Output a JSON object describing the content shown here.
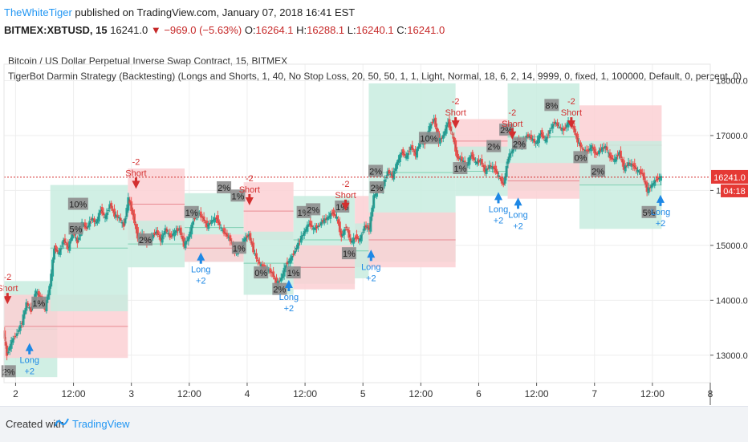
{
  "header": {
    "author": "TheWhiteTiger",
    "published_text": "published on TradingView.com, January 07, 2018 16:41 EST",
    "symbol": "BITMEX:XBTUSD, 15",
    "last": "16241.0",
    "change": "−969.0 (−5.63%)",
    "open_label": "O:",
    "open": "16264.1",
    "high_label": "H:",
    "high": "16288.1",
    "low_label": "L:",
    "low": "16240.1",
    "close_label": "C:",
    "close": "16241.0"
  },
  "footer": {
    "created_with": "Created with",
    "brand": "TradingView"
  },
  "colors": {
    "up": "#26a69a",
    "down": "#ef5350",
    "long_zone": "#c8ecdf",
    "short_zone": "#fbd0d4",
    "short_marker": "#d32f2f",
    "long_marker": "#1e88e5",
    "price_line": "#d32f2f",
    "label_bg": "#8d8d8d"
  },
  "chart_data": {
    "type": "candlestick",
    "title": "Bitcoin / US Dollar Perpetual Inverse Swap Contract, 15, BITMEX",
    "subtitle": "TigerBot Darmin Strategy (Backtesting) (Longs and Shorts, 1, 40, No Stop Loss, 20, 50, 50, 1, 1, Light, Normal, 18, 6, 2, 14, 9999, 0, fixed, 1, 100000, Default, 0, percent, 0)",
    "x_ticks": [
      "2",
      "12:00",
      "3",
      "12:00",
      "4",
      "12:00",
      "5",
      "12:00",
      "6",
      "12:00",
      "7",
      "12:00",
      "8"
    ],
    "x_tick_positions": [
      0.2,
      0.7,
      1.2,
      1.7,
      2.2,
      2.7,
      3.2,
      3.7,
      4.2,
      4.7,
      5.2,
      5.7,
      6.2
    ],
    "x_range": [
      0.1,
      6.2
    ],
    "y_ticks": [
      "13000.0",
      "14000.0",
      "15000.0",
      "16000.0",
      "17000.0",
      "18000.0"
    ],
    "y_tick_values": [
      13000,
      14000,
      15000,
      16000,
      17000,
      18000
    ],
    "y_range": [
      12500,
      18300
    ],
    "last_price": 16241.0,
    "last_price_label": "16241.0",
    "countdown": "04:18",
    "price_path": [
      [
        0.1,
        13450
      ],
      [
        0.13,
        13000
      ],
      [
        0.17,
        13250
      ],
      [
        0.22,
        13400
      ],
      [
        0.26,
        13600
      ],
      [
        0.3,
        13950
      ],
      [
        0.34,
        13800
      ],
      [
        0.38,
        14150
      ],
      [
        0.42,
        14050
      ],
      [
        0.46,
        13850
      ],
      [
        0.5,
        14250
      ],
      [
        0.54,
        14950
      ],
      [
        0.58,
        14850
      ],
      [
        0.62,
        15100
      ],
      [
        0.66,
        14950
      ],
      [
        0.7,
        15250
      ],
      [
        0.74,
        15050
      ],
      [
        0.78,
        15400
      ],
      [
        0.82,
        15300
      ],
      [
        0.86,
        15500
      ],
      [
        0.9,
        15400
      ],
      [
        0.94,
        15650
      ],
      [
        0.98,
        15500
      ],
      [
        1.02,
        15750
      ],
      [
        1.06,
        15550
      ],
      [
        1.1,
        15500
      ],
      [
        1.14,
        15350
      ],
      [
        1.18,
        15850
      ],
      [
        1.22,
        15550
      ],
      [
        1.26,
        15150
      ],
      [
        1.3,
        15200
      ],
      [
        1.34,
        15050
      ],
      [
        1.38,
        15150
      ],
      [
        1.42,
        15250
      ],
      [
        1.46,
        15100
      ],
      [
        1.5,
        15300
      ],
      [
        1.54,
        15150
      ],
      [
        1.58,
        15250
      ],
      [
        1.62,
        15300
      ],
      [
        1.66,
        15000
      ],
      [
        1.7,
        15150
      ],
      [
        1.74,
        15450
      ],
      [
        1.78,
        15600
      ],
      [
        1.82,
        15500
      ],
      [
        1.86,
        15350
      ],
      [
        1.9,
        15450
      ],
      [
        1.94,
        15500
      ],
      [
        1.98,
        15300
      ],
      [
        2.02,
        15200
      ],
      [
        2.06,
        15100
      ],
      [
        2.1,
        14850
      ],
      [
        2.14,
        14950
      ],
      [
        2.18,
        15100
      ],
      [
        2.22,
        15200
      ],
      [
        2.26,
        14900
      ],
      [
        2.3,
        14700
      ],
      [
        2.34,
        14600
      ],
      [
        2.38,
        14550
      ],
      [
        2.42,
        14500
      ],
      [
        2.46,
        14300
      ],
      [
        2.5,
        14400
      ],
      [
        2.54,
        14650
      ],
      [
        2.58,
        14750
      ],
      [
        2.62,
        14900
      ],
      [
        2.66,
        15100
      ],
      [
        2.7,
        15250
      ],
      [
        2.74,
        15400
      ],
      [
        2.78,
        15300
      ],
      [
        2.82,
        15350
      ],
      [
        2.86,
        15450
      ],
      [
        2.9,
        15500
      ],
      [
        2.94,
        15600
      ],
      [
        2.98,
        15500
      ],
      [
        3.02,
        15150
      ],
      [
        3.06,
        15350
      ],
      [
        3.1,
        15050
      ],
      [
        3.14,
        15150
      ],
      [
        3.18,
        15100
      ],
      [
        3.22,
        15350
      ],
      [
        3.26,
        15300
      ],
      [
        3.3,
        15900
      ],
      [
        3.34,
        16000
      ],
      [
        3.38,
        16100
      ],
      [
        3.42,
        16350
      ],
      [
        3.46,
        16250
      ],
      [
        3.5,
        16500
      ],
      [
        3.54,
        16700
      ],
      [
        3.58,
        16600
      ],
      [
        3.62,
        16800
      ],
      [
        3.66,
        16650
      ],
      [
        3.7,
        16900
      ],
      [
        3.74,
        16850
      ],
      [
        3.78,
        17150
      ],
      [
        3.82,
        17300
      ],
      [
        3.86,
        16900
      ],
      [
        3.9,
        17000
      ],
      [
        3.94,
        17250
      ],
      [
        3.98,
        17000
      ],
      [
        4.02,
        16600
      ],
      [
        4.06,
        16550
      ],
      [
        4.1,
        16450
      ],
      [
        4.14,
        16650
      ],
      [
        4.18,
        16500
      ],
      [
        4.22,
        16550
      ],
      [
        4.26,
        16350
      ],
      [
        4.3,
        16450
      ],
      [
        4.34,
        16400
      ],
      [
        4.38,
        16250
      ],
      [
        4.42,
        16100
      ],
      [
        4.46,
        16600
      ],
      [
        4.5,
        16750
      ],
      [
        4.54,
        16900
      ],
      [
        4.58,
        16850
      ],
      [
        4.62,
        17000
      ],
      [
        4.66,
        16950
      ],
      [
        4.7,
        16850
      ],
      [
        4.74,
        17050
      ],
      [
        4.78,
        16900
      ],
      [
        4.82,
        17100
      ],
      [
        4.86,
        17250
      ],
      [
        4.9,
        17150
      ],
      [
        4.94,
        17100
      ],
      [
        4.98,
        17250
      ],
      [
        5.02,
        17150
      ],
      [
        5.06,
        16900
      ],
      [
        5.1,
        16750
      ],
      [
        5.14,
        16700
      ],
      [
        5.18,
        16800
      ],
      [
        5.22,
        16650
      ],
      [
        5.26,
        16750
      ],
      [
        5.3,
        16800
      ],
      [
        5.34,
        16600
      ],
      [
        5.38,
        16550
      ],
      [
        5.42,
        16700
      ],
      [
        5.46,
        16400
      ],
      [
        5.5,
        16500
      ],
      [
        5.54,
        16450
      ],
      [
        5.58,
        16350
      ],
      [
        5.62,
        16300
      ],
      [
        5.66,
        16000
      ],
      [
        5.7,
        16100
      ],
      [
        5.74,
        16200
      ],
      [
        5.78,
        16241
      ]
    ],
    "zones": [
      {
        "type": "long",
        "x0": 0.1,
        "x1": 0.56,
        "y0": 12600,
        "y1": 14350
      },
      {
        "type": "short",
        "x0": 0.1,
        "x1": 1.17,
        "y0": 12950,
        "y1": 14100
      },
      {
        "type": "long",
        "x0": 0.5,
        "x1": 1.17,
        "y0": 13800,
        "y1": 16100
      },
      {
        "type": "short",
        "x0": 1.17,
        "x1": 1.66,
        "y0": 15100,
        "y1": 16400
      },
      {
        "type": "long",
        "x0": 1.17,
        "x1": 1.66,
        "y0": 14600,
        "y1": 15450
      },
      {
        "type": "long",
        "x0": 1.66,
        "x1": 2.17,
        "y0": 14700,
        "y1": 15950
      },
      {
        "type": "short",
        "x0": 1.66,
        "x1": 2.17,
        "y0": 14700,
        "y1": 15200
      },
      {
        "type": "short",
        "x0": 2.17,
        "x1": 2.6,
        "y0": 15100,
        "y1": 16150
      },
      {
        "type": "long",
        "x0": 2.17,
        "x1": 2.6,
        "y0": 14100,
        "y1": 15250
      },
      {
        "type": "long",
        "x0": 2.6,
        "x1": 3.13,
        "y0": 14300,
        "y1": 15900
      },
      {
        "type": "short",
        "x0": 2.6,
        "x1": 3.13,
        "y0": 14200,
        "y1": 15000
      },
      {
        "type": "short",
        "x0": 3.13,
        "x1": 3.25,
        "y0": 14600,
        "y1": 15900
      },
      {
        "type": "long",
        "x0": 3.13,
        "x1": 3.25,
        "y0": 14400,
        "y1": 15400
      },
      {
        "type": "long",
        "x0": 3.25,
        "x1": 4.0,
        "y0": 14700,
        "y1": 17950
      },
      {
        "type": "short",
        "x0": 3.25,
        "x1": 4.0,
        "y0": 14600,
        "y1": 15600
      },
      {
        "type": "short",
        "x0": 4.0,
        "x1": 4.45,
        "y0": 16500,
        "y1": 17300
      },
      {
        "type": "long",
        "x0": 4.0,
        "x1": 4.45,
        "y0": 15900,
        "y1": 16800
      },
      {
        "type": "long",
        "x0": 4.45,
        "x1": 5.07,
        "y0": 16000,
        "y1": 17950
      },
      {
        "type": "short",
        "x0": 4.45,
        "x1": 5.07,
        "y0": 15850,
        "y1": 16500
      },
      {
        "type": "short",
        "x0": 5.07,
        "x1": 5.78,
        "y0": 16100,
        "y1": 17550
      },
      {
        "type": "long",
        "x0": 5.07,
        "x1": 5.78,
        "y0": 15300,
        "y1": 16900
      }
    ],
    "trades": [
      {
        "side": "short",
        "x": 0.13,
        "y": 13900,
        "label": "Short",
        "qty": "-2"
      },
      {
        "side": "long",
        "x": 0.32,
        "y": 13250,
        "label": "Long",
        "qty": "+2"
      },
      {
        "side": "short",
        "x": 1.24,
        "y": 16000,
        "label": "Short",
        "qty": "-2"
      },
      {
        "side": "long",
        "x": 1.8,
        "y": 14900,
        "label": "Long",
        "qty": "+2"
      },
      {
        "side": "short",
        "x": 2.22,
        "y": 15700,
        "label": "Short",
        "qty": "-2"
      },
      {
        "side": "long",
        "x": 2.56,
        "y": 14400,
        "label": "Long",
        "qty": "+2"
      },
      {
        "side": "short",
        "x": 3.05,
        "y": 15600,
        "label": "Short",
        "qty": "-2"
      },
      {
        "side": "long",
        "x": 3.27,
        "y": 14950,
        "label": "Long",
        "qty": "+2"
      },
      {
        "side": "short",
        "x": 4.0,
        "y": 17100,
        "label": "Short",
        "qty": "-2"
      },
      {
        "side": "long",
        "x": 4.37,
        "y": 16000,
        "label": "Long",
        "qty": "+2"
      },
      {
        "side": "short",
        "x": 4.49,
        "y": 16900,
        "label": "Short",
        "qty": "-2"
      },
      {
        "side": "long",
        "x": 4.54,
        "y": 15900,
        "label": "Long",
        "qty": "+2"
      },
      {
        "side": "short",
        "x": 5.0,
        "y": 17100,
        "label": "Short",
        "qty": "-2"
      },
      {
        "side": "long",
        "x": 5.77,
        "y": 15950,
        "label": "Long",
        "qty": "+2"
      }
    ],
    "pct_labels": [
      {
        "x": 0.14,
        "y": 12700,
        "text": "2%"
      },
      {
        "x": 0.4,
        "y": 13950,
        "text": "1%"
      },
      {
        "x": 0.72,
        "y": 15300,
        "text": "5%"
      },
      {
        "x": 0.74,
        "y": 15750,
        "text": "10%"
      },
      {
        "x": 1.32,
        "y": 15100,
        "text": "2%"
      },
      {
        "x": 1.72,
        "y": 15600,
        "text": "1%"
      },
      {
        "x": 2.0,
        "y": 16050,
        "text": "2%"
      },
      {
        "x": 2.12,
        "y": 15900,
        "text": "1%"
      },
      {
        "x": 2.13,
        "y": 14950,
        "text": "1%"
      },
      {
        "x": 2.32,
        "y": 14500,
        "text": "0%"
      },
      {
        "x": 2.48,
        "y": 14200,
        "text": "2%"
      },
      {
        "x": 2.6,
        "y": 14500,
        "text": "1%"
      },
      {
        "x": 2.69,
        "y": 15600,
        "text": "1%"
      },
      {
        "x": 2.77,
        "y": 15650,
        "text": "2%"
      },
      {
        "x": 3.02,
        "y": 15700,
        "text": "1%"
      },
      {
        "x": 3.08,
        "y": 14850,
        "text": "1%"
      },
      {
        "x": 3.31,
        "y": 16350,
        "text": "2%"
      },
      {
        "x": 3.32,
        "y": 16050,
        "text": "2%"
      },
      {
        "x": 3.77,
        "y": 16950,
        "text": "10%"
      },
      {
        "x": 4.04,
        "y": 16400,
        "text": "1%"
      },
      {
        "x": 4.33,
        "y": 16800,
        "text": "2%"
      },
      {
        "x": 4.44,
        "y": 17100,
        "text": "2%"
      },
      {
        "x": 4.55,
        "y": 16850,
        "text": "2%"
      },
      {
        "x": 4.83,
        "y": 17550,
        "text": "8%"
      },
      {
        "x": 5.08,
        "y": 16600,
        "text": "0%"
      },
      {
        "x": 5.23,
        "y": 16350,
        "text": "2%"
      },
      {
        "x": 5.67,
        "y": 15600,
        "text": "5%"
      }
    ]
  }
}
